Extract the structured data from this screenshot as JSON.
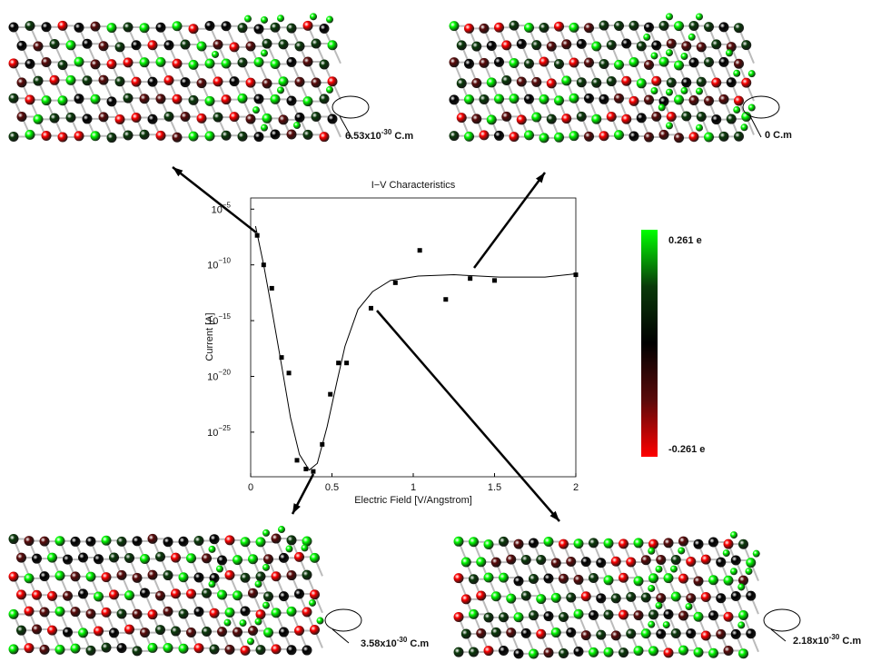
{
  "chart_data": {
    "type": "scatter",
    "title": "I−V Characteristics",
    "x_label": "Electric Field [V/Angstrom]",
    "y_label": "Current [A]",
    "log_y": true,
    "color": "#000000",
    "xlim": [
      0,
      2
    ],
    "ylim": [
      1e-29,
      0.0001
    ],
    "xticks": [
      0,
      0.5,
      1,
      1.5,
      2
    ],
    "yticks": [
      {
        "value": 1e-05,
        "label": "10",
        "superscript": "−5"
      },
      {
        "value": 1e-10,
        "label": "10",
        "superscript": "−10"
      },
      {
        "value": 1e-15,
        "label": "10",
        "superscript": "−15"
      },
      {
        "value": 1e-20,
        "label": "10",
        "superscript": "−20"
      },
      {
        "value": 1e-25,
        "label": "10",
        "superscript": "−25"
      }
    ],
    "series": [
      {
        "marker": "square",
        "x": [
          0.04,
          0.08,
          0.13,
          0.19,
          0.235,
          0.285,
          0.34,
          0.385,
          0.44,
          0.49,
          0.54,
          0.59,
          0.74,
          0.89,
          1.04,
          1.2,
          1.35,
          1.5,
          2
        ],
        "values": [
          4.4e-08,
          1e-10,
          8e-13,
          5e-19,
          2e-20,
          3e-28,
          5e-29,
          3e-29,
          8e-27,
          2.5e-22,
          1.6e-19,
          1.6e-19,
          1.3e-14,
          2.5e-12,
          2e-09,
          8e-14,
          6e-12,
          4e-12,
          1.3e-11
        ]
      },
      {
        "marker": "line",
        "x": [
          0.03,
          0.08,
          0.13,
          0.19,
          0.245,
          0.3,
          0.36,
          0.41,
          0.47,
          0.53,
          0.58,
          0.66,
          0.75,
          0.86,
          1.03,
          1.25,
          1.53,
          1.81,
          2
        ],
        "values": [
          3e-07,
          1e-10,
          1e-14,
          1e-19,
          2e-24,
          1e-27,
          4e-29,
          1.6e-28,
          3e-25,
          3e-21,
          5e-18,
          1e-14,
          4e-13,
          4e-12,
          1e-11,
          1.3e-11,
          8e-12,
          8e-12,
          1.6e-11
        ]
      }
    ],
    "colorbar": {
      "max_label": "0.261 e",
      "min_label": "-0.261 e",
      "colors": [
        "#00ff00",
        "#0a3a0a",
        "#000000",
        "#5a0a0a",
        "#ff0000"
      ]
    },
    "annotations": [
      {
        "text": "6.53x10",
        "sup": "-30",
        "unit": " C.m"
      },
      {
        "text": "0 C.m"
      },
      {
        "text": "3.58x10",
        "sup": "-30",
        "unit": " C.m"
      },
      {
        "text": "2.18x10",
        "sup": "-30",
        "unit": " C.m"
      }
    ]
  }
}
